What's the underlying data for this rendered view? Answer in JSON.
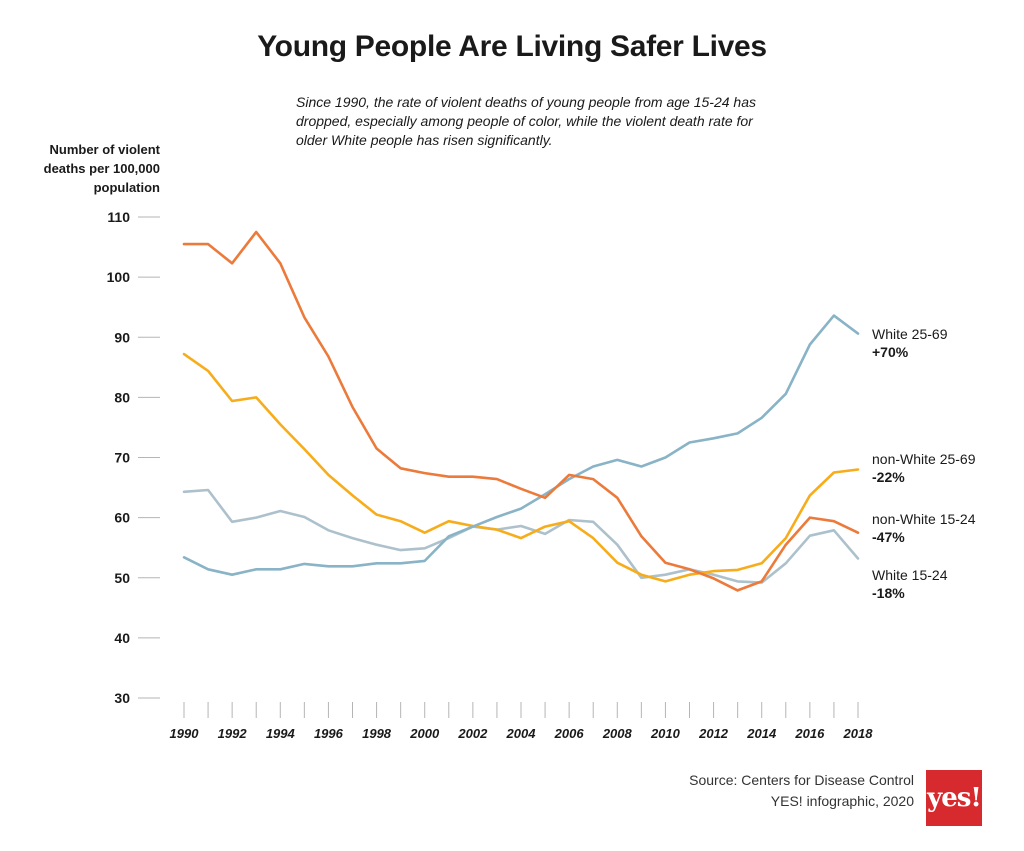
{
  "title": "Young People Are Living Safer Lives",
  "subtitle": "Since 1990, the rate of violent deaths of young people from age 15-24 has dropped, especially among people of color, while the violent death rate for older White people has risen significantly.",
  "source": {
    "line1": "Source: Centers for Disease Control",
    "line2": "YES! infographic, 2020"
  },
  "logo": "yes!",
  "chart_data": {
    "type": "line",
    "ylabel": "Number of violent deaths per 100,000 population",
    "xlabel": "",
    "ylim": [
      30,
      110
    ],
    "yticks": [
      30,
      40,
      50,
      60,
      70,
      80,
      90,
      100,
      110
    ],
    "xticks": [
      1990,
      1992,
      1994,
      1996,
      1998,
      2000,
      2002,
      2004,
      2006,
      2008,
      2010,
      2012,
      2014,
      2016,
      2018
    ],
    "x": [
      1990,
      1991,
      1992,
      1993,
      1994,
      1995,
      1996,
      1997,
      1998,
      1999,
      2000,
      2001,
      2002,
      2003,
      2004,
      2005,
      2006,
      2007,
      2008,
      2009,
      2010,
      2011,
      2012,
      2013,
      2014,
      2015,
      2016,
      2017,
      2018
    ],
    "legend": "inline-right",
    "grid": false,
    "series": [
      {
        "name": "White 25-69",
        "change": "+70%",
        "color": "#89b3c6",
        "values": [
          53.4,
          51.4,
          50.5,
          51.4,
          51.4,
          52.3,
          51.9,
          51.9,
          52.4,
          52.4,
          52.8,
          56.9,
          58.5,
          60.1,
          61.5,
          63.9,
          66.4,
          68.5,
          69.6,
          68.5,
          70.0,
          72.5,
          73.2,
          74.0,
          76.6,
          80.6,
          88.8,
          93.6,
          90.6
        ]
      },
      {
        "name": "non-White 25-69",
        "change": "-22%",
        "color": "#f7ad1b",
        "values": [
          87.2,
          84.4,
          79.4,
          80.0,
          75.5,
          71.4,
          67.1,
          63.7,
          60.5,
          59.4,
          57.5,
          59.4,
          58.6,
          58.0,
          56.6,
          58.5,
          59.4,
          56.6,
          52.5,
          50.5,
          49.4,
          50.5,
          51.1,
          51.3,
          52.4,
          56.6,
          63.7,
          67.5,
          68.0
        ]
      },
      {
        "name": "non-White 15-24",
        "change": "-47%",
        "color": "#ec7a3b",
        "values": [
          105.5,
          105.5,
          102.3,
          107.5,
          102.3,
          93.3,
          86.8,
          78.4,
          71.5,
          68.2,
          67.4,
          66.8,
          66.8,
          66.4,
          64.8,
          63.3,
          67.1,
          66.4,
          63.3,
          56.9,
          52.5,
          51.4,
          49.9,
          47.9,
          49.4,
          55.5,
          60.0,
          59.4,
          57.5
        ]
      },
      {
        "name": "White 15-24",
        "change": "-18%",
        "color": "#adc1cc",
        "values": [
          64.3,
          64.6,
          59.3,
          60.0,
          61.1,
          60.1,
          57.9,
          56.6,
          55.5,
          54.6,
          54.9,
          56.6,
          58.5,
          58.0,
          58.6,
          57.3,
          59.6,
          59.3,
          55.5,
          50.0,
          50.5,
          51.4,
          50.5,
          49.4,
          49.2,
          52.4,
          57.0,
          57.9,
          53.2
        ]
      }
    ]
  }
}
